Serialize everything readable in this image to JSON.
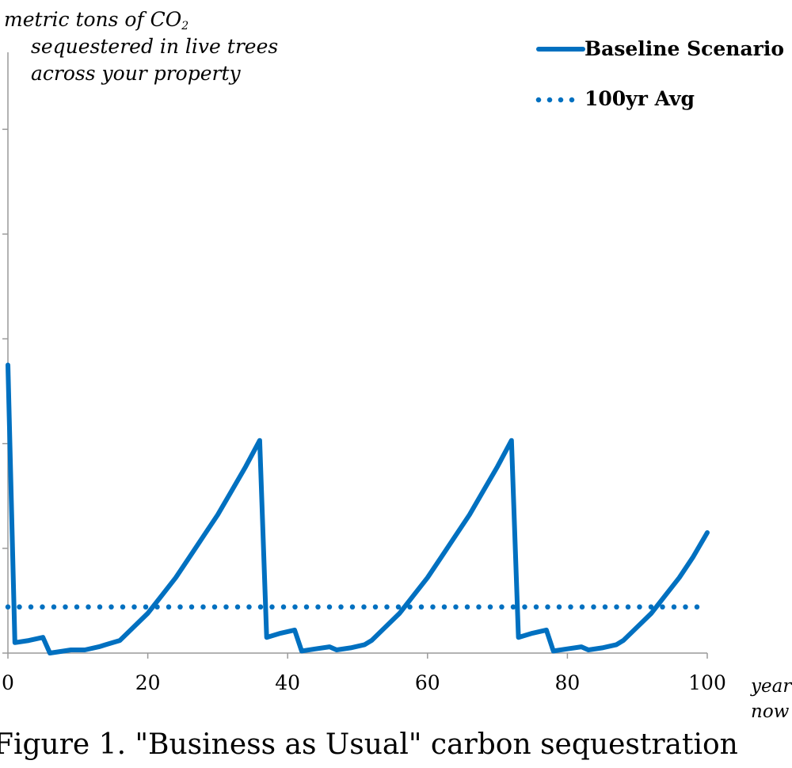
{
  "chart_data": {
    "type": "line",
    "caption": "Figure 1. \"Business as Usual\" carbon sequestration",
    "ylabel": {
      "line1_prefix": "metric tons of CO",
      "line1_sub": "2",
      "line2": "sequestered in live trees",
      "line3": "across your property"
    },
    "xlabel": {
      "line1": "year",
      "line2": "now"
    },
    "x_ticks": [
      0,
      20,
      40,
      60,
      80,
      100
    ],
    "x_tick_labels": [
      "0",
      "20",
      "40",
      "60",
      "80",
      "100"
    ],
    "xlim": [
      0,
      100
    ],
    "ylim": [
      0,
      6
    ],
    "y_tick_count": 7,
    "grid": false,
    "legend_position": "top-right",
    "series": [
      {
        "name": "Baseline Scenario",
        "style": "solid",
        "color": "#0070C0",
        "x": [
          0,
          1,
          3,
          5,
          6,
          8,
          9,
          10,
          11,
          13,
          14,
          15,
          16,
          18,
          20,
          22,
          24,
          26,
          28,
          30,
          32,
          34,
          36,
          37,
          39,
          41,
          42,
          44,
          46,
          47,
          49,
          51,
          52,
          54,
          56,
          58,
          60,
          62,
          64,
          66,
          68,
          70,
          72,
          73,
          75,
          77,
          78,
          80,
          82,
          83,
          85,
          87,
          88,
          90,
          92,
          94,
          96,
          98,
          100
        ],
        "y": [
          2.75,
          0.1,
          0.12,
          0.15,
          0.0,
          0.02,
          0.03,
          0.03,
          0.03,
          0.06,
          0.08,
          0.1,
          0.12,
          0.25,
          0.38,
          0.55,
          0.72,
          0.92,
          1.12,
          1.32,
          1.55,
          1.78,
          2.03,
          0.15,
          0.19,
          0.22,
          0.02,
          0.04,
          0.06,
          0.03,
          0.05,
          0.08,
          0.12,
          0.25,
          0.38,
          0.55,
          0.72,
          0.92,
          1.12,
          1.32,
          1.55,
          1.78,
          2.03,
          0.15,
          0.19,
          0.22,
          0.02,
          0.04,
          0.06,
          0.03,
          0.05,
          0.08,
          0.12,
          0.25,
          0.38,
          0.55,
          0.72,
          0.92,
          1.15
        ]
      },
      {
        "name": "100yr Avg",
        "style": "dotted",
        "color": "#0070C0",
        "x": [
          0,
          100
        ],
        "y": [
          0.44,
          0.44
        ]
      }
    ]
  }
}
